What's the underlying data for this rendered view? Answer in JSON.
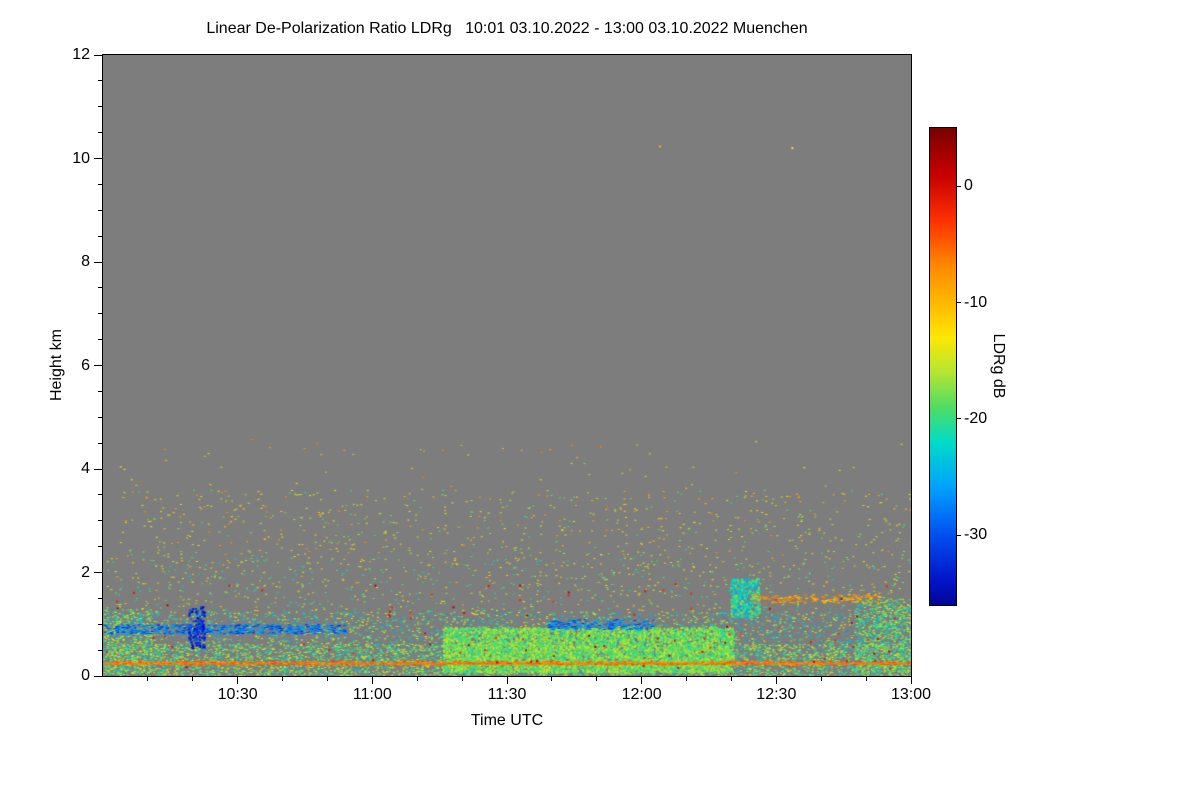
{
  "chart_data": {
    "type": "heatmap",
    "title": "Linear De-Polarization Ratio LDRg   10:01 03.10.2022 - 13:00 03.10.2022 Muenchen",
    "xlabel": "Time UTC",
    "ylabel": "Height km",
    "x_axis": {
      "start_label": "10:01",
      "end_label": "13:00",
      "range_minutes": [
        600,
        780
      ],
      "major_ticks": [
        {
          "label": "10:30",
          "minutes": 630
        },
        {
          "label": "11:00",
          "minutes": 660
        },
        {
          "label": "11:30",
          "minutes": 690
        },
        {
          "label": "12:00",
          "minutes": 720
        },
        {
          "label": "12:30",
          "minutes": 750
        },
        {
          "label": "13:00",
          "minutes": 780
        }
      ],
      "minor_step_minutes": 10
    },
    "y_axis": {
      "range_km": [
        0,
        12
      ],
      "major_ticks": [
        {
          "label": "0",
          "v": 0
        },
        {
          "label": "2",
          "v": 2
        },
        {
          "label": "4",
          "v": 4
        },
        {
          "label": "6",
          "v": 6
        },
        {
          "label": "8",
          "v": 8
        },
        {
          "label": "10",
          "v": 10
        },
        {
          "label": "12",
          "v": 12
        }
      ],
      "minor_step_km": 0.5
    },
    "background_value": "no-signal",
    "background_color": "#7d7d7d",
    "colorbar": {
      "label": "LDRg dB",
      "range": [
        5,
        -36
      ],
      "ticks": [
        {
          "label": "0",
          "v": 0
        },
        {
          "label": "-10",
          "v": -10
        },
        {
          "label": "-20",
          "v": -20
        },
        {
          "label": "-30",
          "v": -30
        }
      ]
    },
    "colormap": [
      {
        "v": 5,
        "c": "#7a0000"
      },
      {
        "v": 1,
        "c": "#c80000"
      },
      {
        "v": -3,
        "c": "#ff3200"
      },
      {
        "v": -7,
        "c": "#ff8c00"
      },
      {
        "v": -11,
        "c": "#ffc800"
      },
      {
        "v": -13,
        "c": "#fce803"
      },
      {
        "v": -16,
        "c": "#b4e632"
      },
      {
        "v": -19,
        "c": "#50dc64"
      },
      {
        "v": -22,
        "c": "#00dcc8"
      },
      {
        "v": -26,
        "c": "#00a0ff"
      },
      {
        "v": -30,
        "c": "#0050f0"
      },
      {
        "v": -34,
        "c": "#0014c8"
      },
      {
        "v": -37,
        "c": "#000080"
      }
    ],
    "speckle_layers": [
      {
        "name": "dense-near-surface",
        "t": [
          0,
          1
        ],
        "h": [
          0.02,
          0.62
        ],
        "count": 5200,
        "ldr": [
          -13,
          -24
        ],
        "size": [
          2,
          1
        ]
      },
      {
        "name": "low-layer",
        "t": [
          0,
          1
        ],
        "h": [
          0.6,
          1.25
        ],
        "count": 2200,
        "ldr": [
          -12,
          -27
        ],
        "size": [
          2,
          1
        ]
      },
      {
        "name": "left-edge-dense",
        "t": [
          0,
          0.06
        ],
        "h": [
          0.05,
          1.3
        ],
        "count": 500,
        "ldr": [
          -13,
          -25
        ],
        "size": [
          2,
          1
        ]
      },
      {
        "name": "right-edge-dense",
        "t": [
          0.93,
          1
        ],
        "h": [
          0.05,
          1.5
        ],
        "count": 900,
        "ldr": [
          -14,
          -24
        ],
        "size": [
          2,
          1
        ]
      },
      {
        "name": "boundary-layer-green",
        "t": [
          0.42,
          0.78
        ],
        "h": [
          0.08,
          0.95
        ],
        "count": 5200,
        "ldr": [
          -15,
          -21
        ],
        "size": [
          2,
          2
        ]
      },
      {
        "name": "surface-echo-line",
        "t": [
          0,
          1
        ],
        "h": [
          0.22,
          0.3
        ],
        "count": 600,
        "ldr": [
          -3,
          -9
        ],
        "size": [
          3,
          1
        ],
        "solid": true
      },
      {
        "name": "blue-streak-left",
        "t": [
          0,
          0.3
        ],
        "h": [
          0.82,
          1.0
        ],
        "count": 600,
        "ldr": [
          -24,
          -33
        ],
        "size": [
          3,
          1
        ]
      },
      {
        "name": "blue-streak-mid",
        "t": [
          0.55,
          0.68
        ],
        "h": [
          0.9,
          1.1
        ],
        "count": 250,
        "ldr": [
          -24,
          -32
        ],
        "size": [
          3,
          1
        ]
      },
      {
        "name": "dark-blue-plume",
        "t": [
          0.105,
          0.125
        ],
        "h": [
          0.55,
          1.35
        ],
        "count": 140,
        "ldr": [
          -29,
          -36
        ],
        "size": [
          2,
          2
        ]
      },
      {
        "name": "mid-scatter",
        "t": [
          0,
          1
        ],
        "h": [
          1.25,
          2.3
        ],
        "count": 800,
        "ldr": [
          -9,
          -23
        ],
        "size": [
          2,
          1
        ]
      },
      {
        "name": "upper-scatter",
        "t": [
          0.02,
          1
        ],
        "h": [
          2.3,
          3.6
        ],
        "count": 650,
        "ldr": [
          -7,
          -20
        ],
        "size": [
          2,
          1
        ]
      },
      {
        "name": "sparse-high",
        "t": [
          0,
          1
        ],
        "h": [
          3.6,
          4.6
        ],
        "count": 55,
        "ldr": [
          -5,
          -18
        ],
        "size": [
          2,
          1
        ]
      },
      {
        "name": "cyan-cluster",
        "t": [
          0.776,
          0.812
        ],
        "h": [
          1.15,
          1.9
        ],
        "count": 380,
        "ldr": [
          -17,
          -26
        ],
        "size": [
          2,
          2
        ]
      },
      {
        "name": "orange-streak-right",
        "t": [
          0.8,
          0.96
        ],
        "h": [
          1.42,
          1.58
        ],
        "count": 160,
        "ldr": [
          -5,
          -12
        ],
        "size": [
          3,
          1
        ]
      },
      {
        "name": "dark-red-specks",
        "t": [
          0,
          1
        ],
        "h": [
          0.15,
          1.8
        ],
        "count": 90,
        "ldr": [
          2,
          -3
        ],
        "size": [
          2,
          2
        ]
      }
    ],
    "isolated_specks": [
      {
        "t": 0.688,
        "h": 10.25,
        "ldr": -9
      },
      {
        "t": 0.852,
        "h": 10.22,
        "ldr": -13
      },
      {
        "t": 0.615,
        "h": 4.45,
        "ldr": -6
      }
    ]
  }
}
